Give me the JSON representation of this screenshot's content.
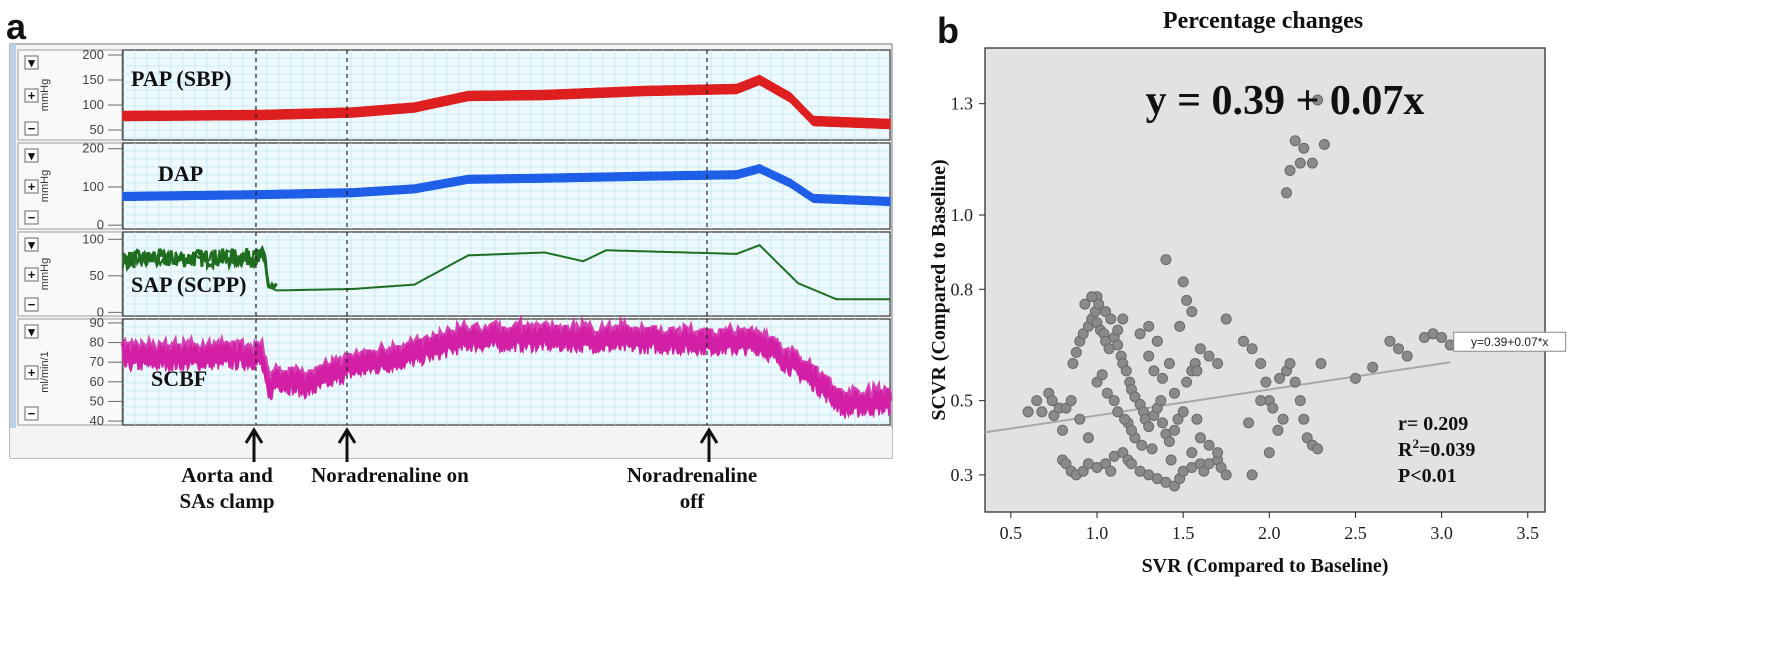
{
  "panel_a": {
    "letter": "a",
    "channels": [
      {
        "label": "PAP (SBP)",
        "unit": "mmHg",
        "ticks": [
          "200",
          "150",
          "100",
          "50"
        ],
        "color": "#dd1f1f"
      },
      {
        "label": "DAP",
        "unit": "mmHg",
        "ticks": [
          "200",
          "100",
          "0"
        ],
        "color": "#1f5fe8"
      },
      {
        "label": "SAP (SCPP)",
        "unit": "mmHg",
        "ticks": [
          "100",
          "50",
          "0"
        ],
        "color": "#1f6e1f"
      },
      {
        "label": "SCBF",
        "unit": "ml/min/1",
        "ticks": [
          "90",
          "80",
          "70",
          "60",
          "50",
          "40"
        ],
        "color": "#d220a6"
      }
    ],
    "events": [
      {
        "label_line1": "Aorta  and",
        "label_line2": "SAs clamp"
      },
      {
        "label_line1": "Noradrenaline  on",
        "label_line2": ""
      },
      {
        "label_line1": "Noradrenaline",
        "label_line2": "off"
      }
    ]
  },
  "chart_data": {
    "type": "scatter",
    "title": "Percentage changes",
    "xlabel": "SVR (Compared to Baseline)",
    "ylabel": "SCVR (Compared to Baseline)",
    "xlim": [
      0.35,
      3.6
    ],
    "ylim": [
      0.2,
      1.45
    ],
    "xticks": [
      0.5,
      1.0,
      1.5,
      2.0,
      2.5,
      3.0,
      3.5
    ],
    "xtick_labels": [
      "0.5",
      "1.0",
      "1.5",
      "2.0",
      "2.5",
      "3.0",
      "3.5"
    ],
    "yticks": [
      0.3,
      0.5,
      0.8,
      1.0,
      1.3
    ],
    "ytick_labels": [
      "0.3",
      "0.5",
      "0.8",
      "1.0",
      "1.3"
    ],
    "equation_big": "y = 0.39 + 0.07x",
    "fit_label": "y=0.39+0.07*x",
    "fit": {
      "intercept": 0.39,
      "slope": 0.07
    },
    "stats": [
      "r=  0.209",
      "R²=0.039",
      "P<0.01"
    ],
    "grid": false,
    "points": [
      [
        0.6,
        0.47
      ],
      [
        0.65,
        0.5
      ],
      [
        0.68,
        0.47
      ],
      [
        0.72,
        0.52
      ],
      [
        0.74,
        0.5
      ],
      [
        0.75,
        0.46
      ],
      [
        0.78,
        0.48
      ],
      [
        0.8,
        0.42
      ],
      [
        0.82,
        0.48
      ],
      [
        0.85,
        0.5
      ],
      [
        0.86,
        0.6
      ],
      [
        0.88,
        0.63
      ],
      [
        0.9,
        0.66
      ],
      [
        0.92,
        0.68
      ],
      [
        0.95,
        0.7
      ],
      [
        0.97,
        0.72
      ],
      [
        0.99,
        0.74
      ],
      [
        1.0,
        0.71
      ],
      [
        1.02,
        0.69
      ],
      [
        1.04,
        0.68
      ],
      [
        1.05,
        0.66
      ],
      [
        1.07,
        0.64
      ],
      [
        1.1,
        0.67
      ],
      [
        1.12,
        0.65
      ],
      [
        1.14,
        0.62
      ],
      [
        1.15,
        0.6
      ],
      [
        1.17,
        0.58
      ],
      [
        1.19,
        0.55
      ],
      [
        1.2,
        0.53
      ],
      [
        1.22,
        0.51
      ],
      [
        1.25,
        0.49
      ],
      [
        1.27,
        0.47
      ],
      [
        1.28,
        0.45
      ],
      [
        1.3,
        0.43
      ],
      [
        1.33,
        0.46
      ],
      [
        1.35,
        0.48
      ],
      [
        1.37,
        0.5
      ],
      [
        1.38,
        0.44
      ],
      [
        1.4,
        0.41
      ],
      [
        1.42,
        0.39
      ],
      [
        1.45,
        0.42
      ],
      [
        1.47,
        0.45
      ],
      [
        1.5,
        0.47
      ],
      [
        1.52,
        0.55
      ],
      [
        1.55,
        0.58
      ],
      [
        1.57,
        0.6
      ],
      [
        0.8,
        0.34
      ],
      [
        0.82,
        0.33
      ],
      [
        0.85,
        0.31
      ],
      [
        0.88,
        0.3
      ],
      [
        0.92,
        0.31
      ],
      [
        0.95,
        0.33
      ],
      [
        1.0,
        0.32
      ],
      [
        1.05,
        0.33
      ],
      [
        1.08,
        0.31
      ],
      [
        1.1,
        0.35
      ],
      [
        1.15,
        0.36
      ],
      [
        1.18,
        0.34
      ],
      [
        1.2,
        0.33
      ],
      [
        1.25,
        0.31
      ],
      [
        1.3,
        0.3
      ],
      [
        1.35,
        0.29
      ],
      [
        1.4,
        0.28
      ],
      [
        1.45,
        0.27
      ],
      [
        1.48,
        0.29
      ],
      [
        1.5,
        0.31
      ],
      [
        1.55,
        0.32
      ],
      [
        1.6,
        0.33
      ],
      [
        1.62,
        0.31
      ],
      [
        1.65,
        0.33
      ],
      [
        1.7,
        0.34
      ],
      [
        1.72,
        0.32
      ],
      [
        1.75,
        0.3
      ],
      [
        1.0,
        0.55
      ],
      [
        1.03,
        0.57
      ],
      [
        1.06,
        0.52
      ],
      [
        1.1,
        0.5
      ],
      [
        1.12,
        0.47
      ],
      [
        1.18,
        0.44
      ],
      [
        1.22,
        0.4
      ],
      [
        1.26,
        0.38
      ],
      [
        0.95,
        0.4
      ],
      [
        0.9,
        0.45
      ],
      [
        1.4,
        0.88
      ],
      [
        1.5,
        0.82
      ],
      [
        1.52,
        0.77
      ],
      [
        1.55,
        0.74
      ],
      [
        1.48,
        0.7
      ],
      [
        1.35,
        0.66
      ],
      [
        1.3,
        0.7
      ],
      [
        1.25,
        0.68
      ],
      [
        1.6,
        0.64
      ],
      [
        1.65,
        0.62
      ],
      [
        1.7,
        0.6
      ],
      [
        1.75,
        0.72
      ],
      [
        1.85,
        0.66
      ],
      [
        1.9,
        0.64
      ],
      [
        1.95,
        0.6
      ],
      [
        1.98,
        0.55
      ],
      [
        2.0,
        0.5
      ],
      [
        2.02,
        0.48
      ],
      [
        2.05,
        0.42
      ],
      [
        2.08,
        0.45
      ],
      [
        2.1,
        0.58
      ],
      [
        2.12,
        0.6
      ],
      [
        2.15,
        0.55
      ],
      [
        2.18,
        0.5
      ],
      [
        2.2,
        0.45
      ],
      [
        2.22,
        0.4
      ],
      [
        2.25,
        0.38
      ],
      [
        2.28,
        0.37
      ],
      [
        2.3,
        0.6
      ],
      [
        2.0,
        0.36
      ],
      [
        1.9,
        0.3
      ],
      [
        2.1,
        1.06
      ],
      [
        2.12,
        1.12
      ],
      [
        2.15,
        1.2
      ],
      [
        2.18,
        1.14
      ],
      [
        2.2,
        1.18
      ],
      [
        2.25,
        1.14
      ],
      [
        2.28,
        1.31
      ],
      [
        2.32,
        1.19
      ],
      [
        2.5,
        0.56
      ],
      [
        2.6,
        0.59
      ],
      [
        2.7,
        0.66
      ],
      [
        2.75,
        0.64
      ],
      [
        2.8,
        0.62
      ],
      [
        2.9,
        0.67
      ],
      [
        2.95,
        0.68
      ],
      [
        3.0,
        0.67
      ],
      [
        3.05,
        0.65
      ],
      [
        1.0,
        0.78
      ],
      [
        1.05,
        0.74
      ],
      [
        1.08,
        0.72
      ],
      [
        1.12,
        0.69
      ],
      [
        1.15,
        0.72
      ],
      [
        1.3,
        0.62
      ],
      [
        1.33,
        0.58
      ],
      [
        1.38,
        0.56
      ],
      [
        1.42,
        0.6
      ],
      [
        1.45,
        0.52
      ],
      [
        1.58,
        0.45
      ],
      [
        1.6,
        0.4
      ],
      [
        1.65,
        0.38
      ],
      [
        1.7,
        0.36
      ],
      [
        1.55,
        0.36
      ],
      [
        0.93,
        0.76
      ],
      [
        0.97,
        0.78
      ],
      [
        1.01,
        0.76
      ],
      [
        1.16,
        0.45
      ],
      [
        1.2,
        0.42
      ],
      [
        1.32,
        0.37
      ],
      [
        1.43,
        0.34
      ],
      [
        1.58,
        0.58
      ],
      [
        1.88,
        0.44
      ],
      [
        1.95,
        0.5
      ],
      [
        2.06,
        0.56
      ]
    ]
  }
}
